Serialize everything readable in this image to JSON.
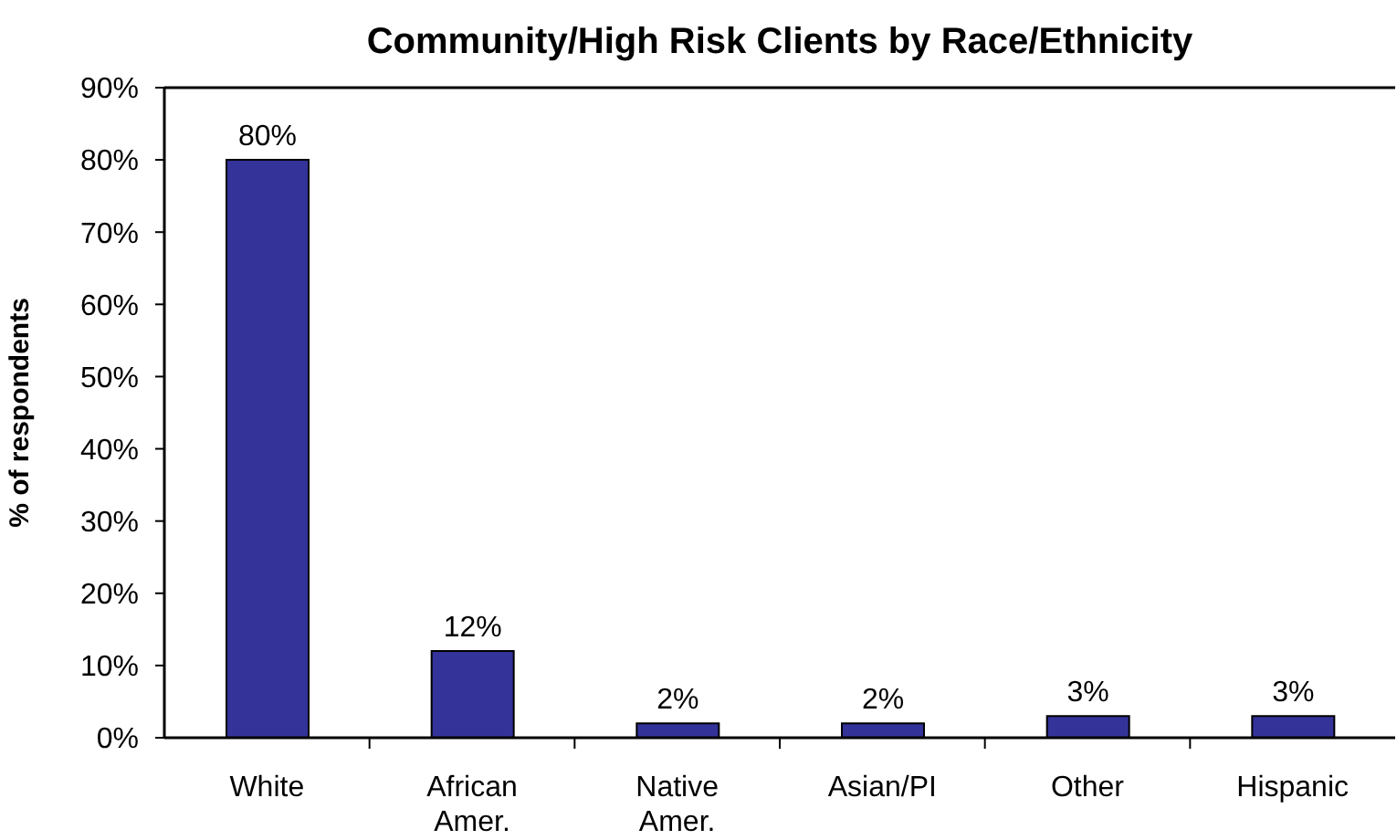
{
  "chart_data": {
    "type": "bar",
    "title": "Community/High Risk Clients by Race/Ethnicity",
    "ylabel": "% of respondents",
    "categories": [
      "White",
      "African Amer.",
      "Native Amer.",
      "Asian/PI",
      "Other",
      "Hispanic"
    ],
    "values": [
      80,
      12,
      2,
      2,
      3,
      3
    ],
    "value_labels": [
      "80%",
      "12%",
      "2%",
      "2%",
      "3%",
      "3%"
    ],
    "color": "#333399",
    "ylim": [
      0,
      90
    ],
    "yticks": [
      {
        "value": 0,
        "label": "0%"
      },
      {
        "value": 10,
        "label": "10%"
      },
      {
        "value": 20,
        "label": "20%"
      },
      {
        "value": 30,
        "label": "30%"
      },
      {
        "value": 40,
        "label": "40%"
      },
      {
        "value": 50,
        "label": "50%"
      },
      {
        "value": 60,
        "label": "60%"
      },
      {
        "value": 70,
        "label": "70%"
      },
      {
        "value": 80,
        "label": "80%"
      },
      {
        "value": 90,
        "label": "90%"
      }
    ]
  }
}
